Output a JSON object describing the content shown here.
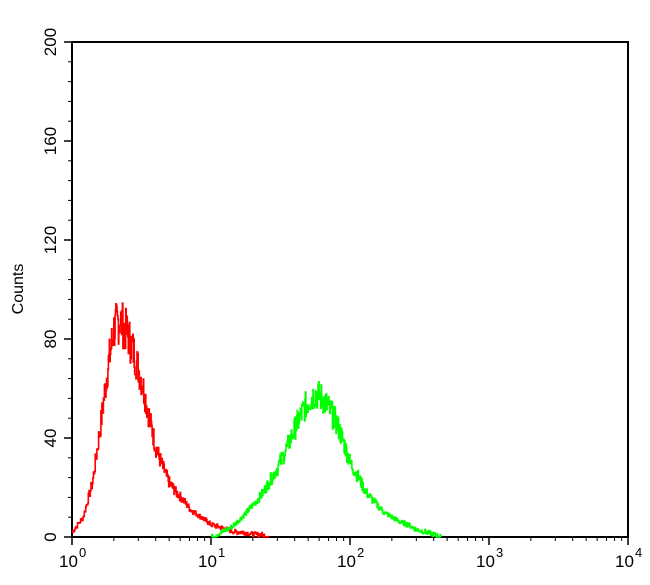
{
  "chart_data": {
    "type": "line",
    "title": "",
    "xlabel": "",
    "ylabel": "Counts",
    "x_scale": "log",
    "xlim": [
      1,
      10000
    ],
    "ylim": [
      0,
      200
    ],
    "x_ticks": [
      {
        "base": "10",
        "exp": "0",
        "value": 1
      },
      {
        "base": "10",
        "exp": "1",
        "value": 10
      },
      {
        "base": "10",
        "exp": "2",
        "value": 100
      },
      {
        "base": "10",
        "exp": "3",
        "value": 1000
      },
      {
        "base": "10",
        "exp": "4",
        "value": 10000
      }
    ],
    "y_ticks": [
      "0",
      "40",
      "80",
      "120",
      "160",
      "200"
    ],
    "grid": false,
    "legend": "none",
    "series": [
      {
        "color": "#ff0000",
        "x": [
          1.0,
          1.2,
          1.4,
          1.6,
          1.8,
          2.0,
          2.2,
          2.5,
          2.8,
          3.2,
          3.6,
          4.0,
          4.5,
          5.0,
          5.6,
          6.3,
          7.1,
          8.0,
          9.0,
          10,
          11.5,
          13,
          15,
          17,
          20,
          23,
          26
        ],
        "y": [
          2,
          8,
          22,
          45,
          68,
          84,
          88,
          82,
          74,
          62,
          48,
          36,
          28,
          22,
          18,
          15,
          11,
          9,
          7,
          5,
          4,
          3,
          2,
          2,
          1,
          1,
          0
        ]
      },
      {
        "color": "#00ff00",
        "x": [
          10,
          12,
          14,
          16,
          18,
          20,
          23,
          26,
          30,
          35,
          40,
          45,
          50,
          56,
          63,
          70,
          80,
          90,
          100,
          115,
          130,
          150,
          175,
          200,
          230,
          260,
          300,
          350,
          400,
          450
        ],
        "y": [
          0,
          2,
          4,
          7,
          10,
          13,
          17,
          22,
          28,
          36,
          44,
          50,
          55,
          58,
          56,
          52,
          46,
          38,
          30,
          24,
          18,
          14,
          10,
          8,
          6,
          5,
          3,
          2,
          1,
          0
        ]
      }
    ]
  }
}
